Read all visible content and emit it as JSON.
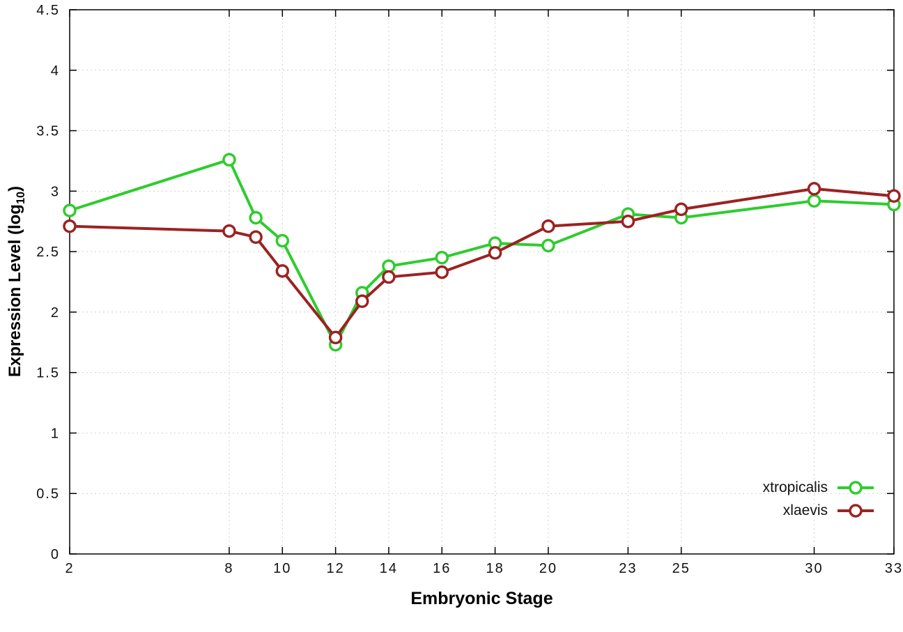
{
  "chart_data": {
    "type": "line",
    "title": "",
    "xlabel": "Embryonic Stage",
    "ylabel_prefix": "Expression Level (log",
    "ylabel_sub": "10",
    "ylabel_suffix": ")",
    "x": [
      2,
      8,
      9,
      10,
      12,
      13,
      14,
      16,
      18,
      20,
      23,
      25,
      30,
      33
    ],
    "series": [
      {
        "name": "xtropicalis",
        "color": "#2ecc2e",
        "values": [
          2.84,
          3.26,
          2.78,
          2.59,
          1.73,
          2.16,
          2.38,
          2.45,
          2.57,
          2.55,
          2.81,
          2.78,
          2.92,
          2.89
        ]
      },
      {
        "name": "xlaevis",
        "color": "#9c2222",
        "values": [
          2.71,
          2.67,
          2.62,
          2.34,
          1.79,
          2.09,
          2.29,
          2.33,
          2.49,
          2.71,
          2.75,
          2.85,
          3.02,
          2.96
        ]
      }
    ],
    "xlim": [
      2,
      33
    ],
    "ylim": [
      0,
      4.5
    ],
    "xticks": [
      2,
      8,
      10,
      12,
      14,
      16,
      18,
      20,
      23,
      25,
      30,
      33
    ],
    "yticks": [
      0,
      0.5,
      1,
      1.5,
      2,
      2.5,
      3,
      3.5,
      4,
      4.5
    ],
    "ytick_labels": [
      "0",
      "0.5",
      "1",
      "1.5",
      "2",
      "2.5",
      "3",
      "3.5",
      "4",
      "4.5"
    ],
    "grid": true,
    "legend_position": "bottom-right-inside",
    "marker": "open-circle"
  }
}
